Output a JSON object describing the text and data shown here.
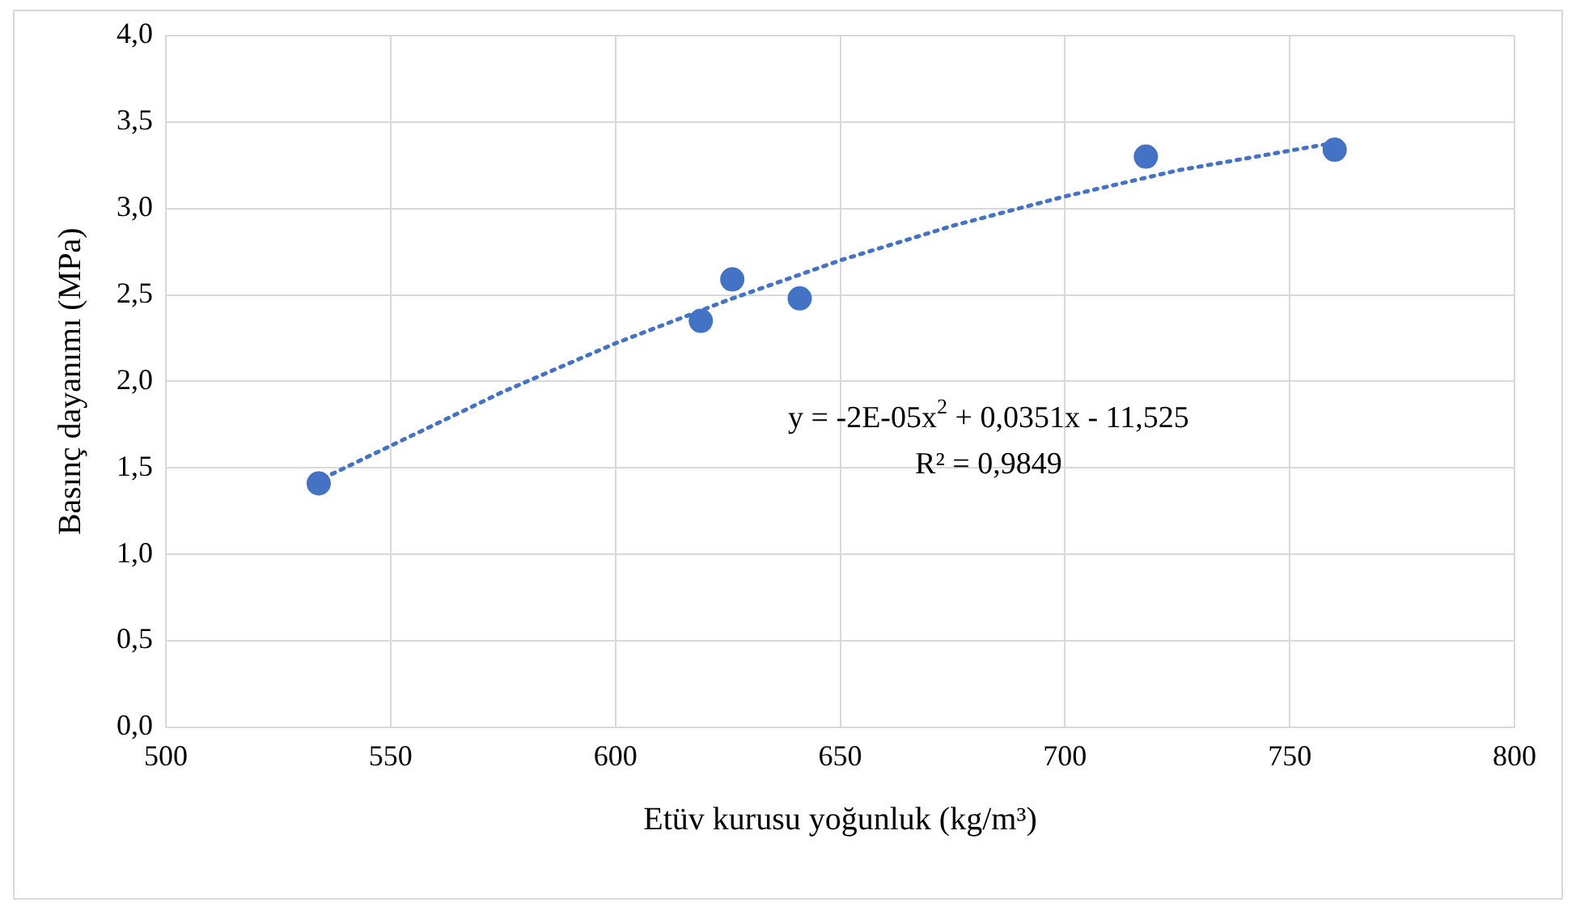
{
  "chart_data": {
    "type": "scatter",
    "xlabel": "Etüv kurusu yoğunluk (kg/m³)",
    "ylabel": "Basınç dayanımı (MPa)",
    "x": [
      534,
      619,
      626,
      641,
      718,
      760
    ],
    "series": [
      {
        "color": "#4472c4",
        "values": [
          1.41,
          2.35,
          2.59,
          2.48,
          3.3,
          3.34
        ],
        "marker": "circle"
      },
      {
        "type": "line",
        "color": "#4472c4",
        "line_style": "dotted",
        "marker": "none",
        "x": [
          535,
          575,
          600,
          625,
          650,
          675,
          700,
          725,
          760
        ],
        "values": [
          1.44,
          1.94,
          2.22,
          2.47,
          2.7,
          2.9,
          3.07,
          3.22,
          3.38
        ]
      }
    ],
    "xlim": [
      500,
      800
    ],
    "xticks": [
      500,
      550,
      600,
      650,
      700,
      750,
      800
    ],
    "ylim": [
      0,
      4
    ],
    "yticks": [
      {
        "value": 0,
        "label": "0,0"
      },
      {
        "value": 0.5,
        "label": "0,5"
      },
      {
        "value": 1,
        "label": "1,0"
      },
      {
        "value": 1.5,
        "label": "1,5"
      },
      {
        "value": 2,
        "label": "2,0"
      },
      {
        "value": 2.5,
        "label": "2,5"
      },
      {
        "value": 3,
        "label": "3,0"
      },
      {
        "value": 3.5,
        "label": "3,5"
      },
      {
        "value": 4,
        "label": "4,0"
      }
    ],
    "grid": true,
    "legend": false,
    "annotations": [
      "y = -2E-05x$^{2}$ + 0,0351x - 11,525",
      "R² = 0,9849"
    ]
  }
}
